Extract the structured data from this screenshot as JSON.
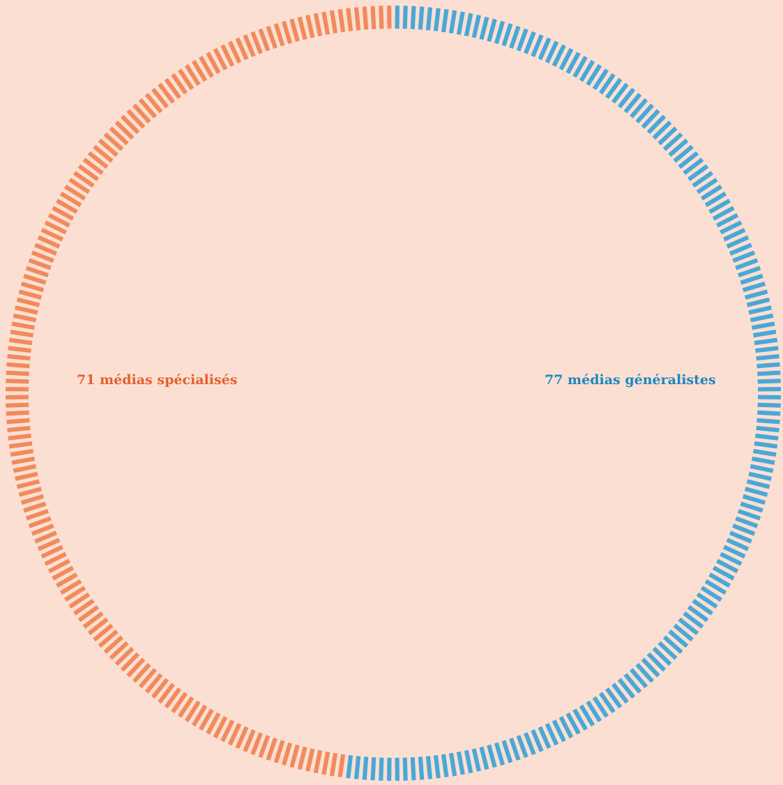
{
  "chart_data": {
    "type": "pie",
    "style": "tick-ring",
    "start_angle_deg": 0,
    "direction": "clockwise",
    "ticks_per_unit": 2,
    "series": [
      {
        "key": "generalistes",
        "value": 77,
        "label": "77 médias généralistes",
        "color": "#4aa8d6",
        "text_color": "#1c86c0"
      },
      {
        "key": "specialises",
        "value": 71,
        "label": "71 médias spécialisés",
        "color": "#f28a5c",
        "text_color": "#e5602c"
      }
    ]
  },
  "colors": {
    "background": "#fbdfd3"
  }
}
